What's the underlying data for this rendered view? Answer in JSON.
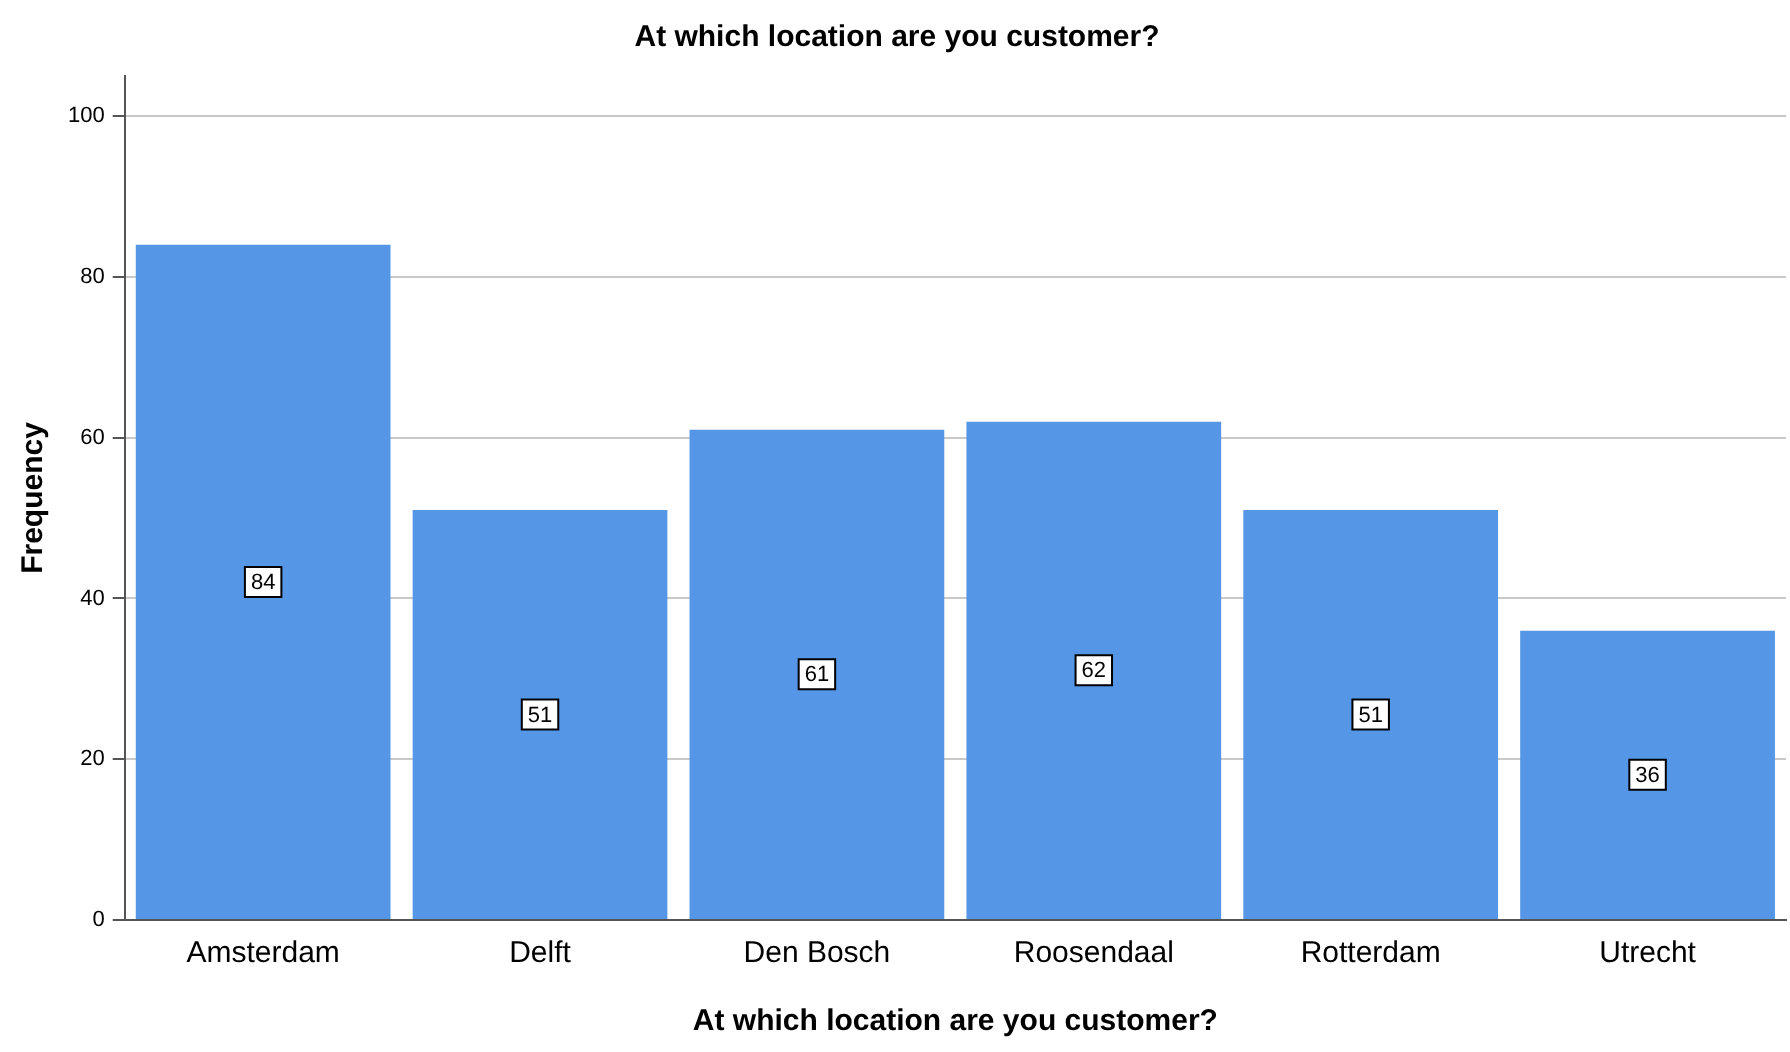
{
  "chart_data": {
    "type": "bar",
    "title": "At which location are you customer?",
    "xlabel": "At which location are you customer?",
    "ylabel": "Frequency",
    "categories": [
      "Amsterdam",
      "Delft",
      "Den Bosch",
      "Roosendaal",
      "Rotterdam",
      "Utrecht"
    ],
    "values": [
      84,
      51,
      61,
      62,
      51,
      36
    ],
    "color": "#5596e6",
    "ylim": [
      0,
      105
    ],
    "yticks": [
      0,
      20,
      40,
      60,
      80,
      100
    ],
    "grid": "y",
    "data_labels": true
  }
}
